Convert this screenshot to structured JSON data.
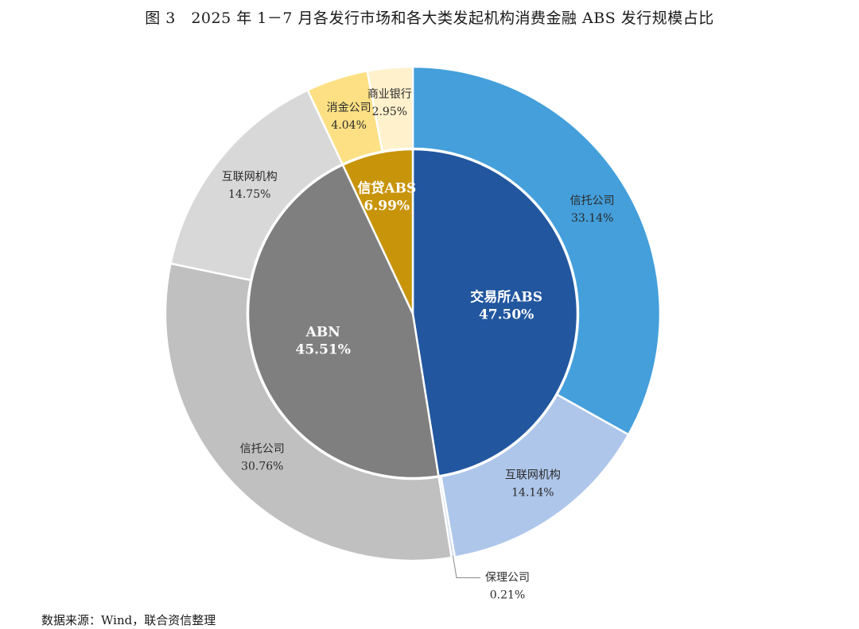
{
  "figure": {
    "title": "图 3　2025 年 1－7 月各发行市场和各大类发起机构消费金融 ABS 发行规模占比",
    "source": "数据来源：Wind，联合资信整理"
  },
  "chart_data": {
    "type": "pie",
    "variant": "two-level donut (inner: issuance market, outer: originator type)",
    "start_angle": "12 o'clock, clockwise",
    "inner": [
      {
        "label": "交易所ABS",
        "value": 47.5,
        "display": "47.50%",
        "color": "#22579f"
      },
      {
        "label": "ABN",
        "value": 45.51,
        "display": "45.51%",
        "color": "#7f7f7f"
      },
      {
        "label": "信贷ABS",
        "value": 6.99,
        "display": "6.99%",
        "color": "#c8940a"
      }
    ],
    "outer": [
      {
        "label": "信托公司",
        "value": 33.14,
        "display": "33.14%",
        "color": "#449fdb",
        "parent": "交易所ABS"
      },
      {
        "label": "互联网机构",
        "value": 14.14,
        "display": "14.14%",
        "color": "#aec6ea",
        "parent": "交易所ABS"
      },
      {
        "label": "保理公司",
        "value": 0.21,
        "display": "0.21%",
        "color": "#c4d5ee",
        "parent": "交易所ABS"
      },
      {
        "label": "信托公司",
        "value": 30.76,
        "display": "30.76%",
        "color": "#c0c0c0",
        "parent": "ABN"
      },
      {
        "label": "互联网机构",
        "value": 14.75,
        "display": "14.75%",
        "color": "#d8d8d8",
        "parent": "ABN"
      },
      {
        "label": "消金公司",
        "value": 4.04,
        "display": "4.04%",
        "color": "#fde084",
        "parent": "信贷ABS"
      },
      {
        "label": "商业银行",
        "value": 2.95,
        "display": "2.95%",
        "color": "#fff1cc",
        "parent": "信贷ABS"
      }
    ]
  }
}
